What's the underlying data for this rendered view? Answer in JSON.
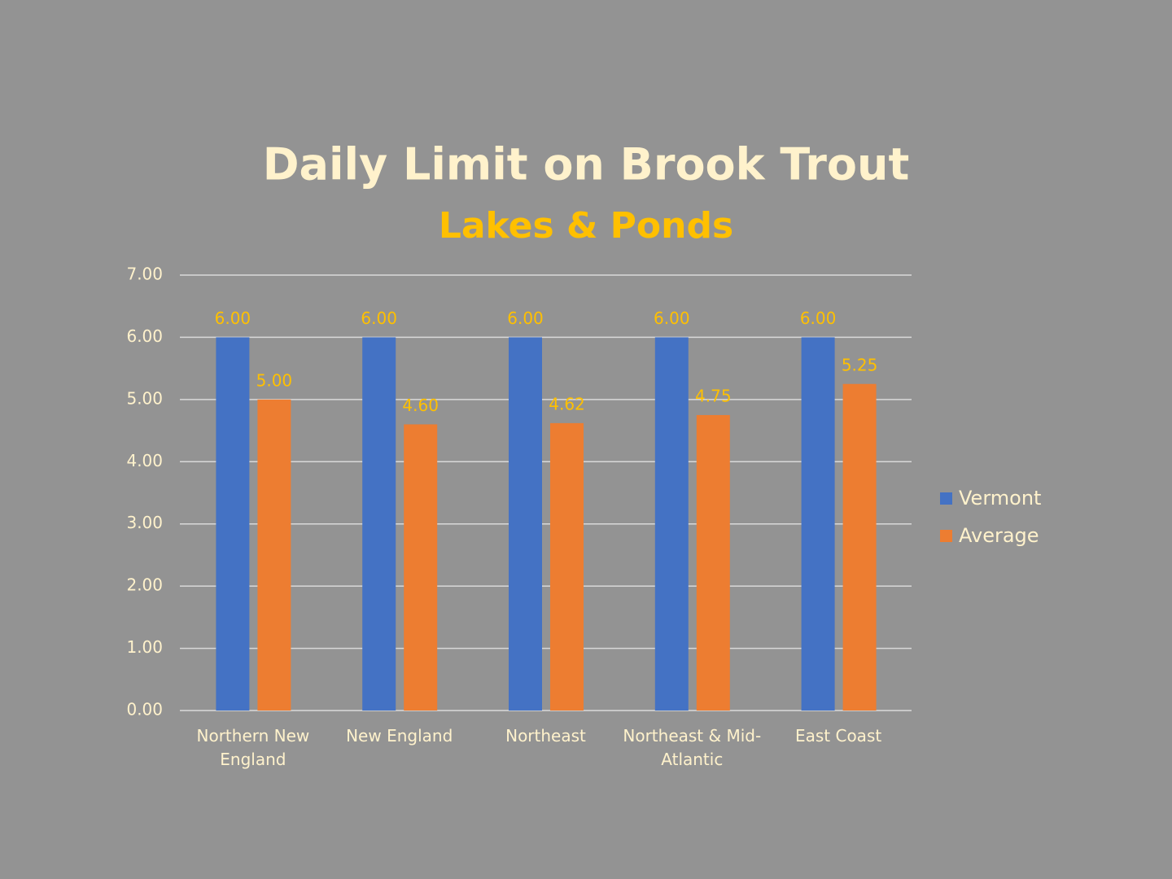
{
  "chart_data": {
    "type": "bar",
    "title": "Daily Limit on Brook Trout",
    "subtitle": "Lakes & Ponds",
    "categories": [
      "Northern New England",
      "New England",
      "Northeast",
      "Northeast & Mid-Atlantic",
      "East Coast"
    ],
    "series": [
      {
        "name": "Vermont",
        "color": "#4472c4",
        "values": [
          6,
          6,
          6,
          6,
          6
        ],
        "value_labels": [
          "6.00",
          "6.00",
          "6.00",
          "6.00",
          "6.00"
        ]
      },
      {
        "name": "Average",
        "color": "#ed7d31",
        "values": [
          5,
          4.6,
          4.62,
          4.75,
          5.25
        ],
        "value_labels": [
          "5.00",
          "4.60",
          "4.62",
          "4.75",
          "5.25"
        ]
      }
    ],
    "ylim": [
      0,
      7
    ],
    "yticks": [
      {
        "value": 0,
        "label": "0.00"
      },
      {
        "value": 1,
        "label": "1.00"
      },
      {
        "value": 2,
        "label": "2.00"
      },
      {
        "value": 3,
        "label": "3.00"
      },
      {
        "value": 4,
        "label": "4.00"
      },
      {
        "value": 5,
        "label": "5.00"
      },
      {
        "value": 6,
        "label": "6.00"
      },
      {
        "value": 7,
        "label": "7.00"
      }
    ],
    "grid": true,
    "legend": "right"
  }
}
